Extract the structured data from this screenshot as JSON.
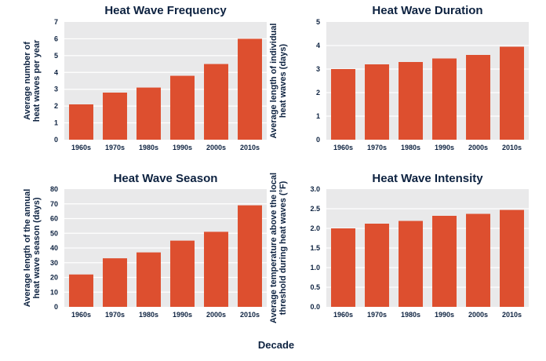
{
  "figure": {
    "shared_xlabel": "Decade"
  },
  "chart_data": [
    {
      "type": "bar",
      "title": "Heat Wave Frequency",
      "ylabel": [
        "Average number of",
        "heat waves per year"
      ],
      "categories": [
        "1960s",
        "1970s",
        "1980s",
        "1990s",
        "2000s",
        "2010s"
      ],
      "values": [
        2.1,
        2.8,
        3.1,
        3.8,
        4.5,
        6.0
      ],
      "ylim": [
        0,
        7
      ],
      "yticks": [
        0,
        1,
        2,
        3,
        4,
        5,
        6,
        7
      ],
      "ytick_labels": [
        "0",
        "1",
        "2",
        "3",
        "4",
        "5",
        "6",
        "7"
      ],
      "color": "#dd4f2f"
    },
    {
      "type": "bar",
      "title": "Heat Wave Duration",
      "ylabel": [
        "Average length of individual",
        "heat waves (days)"
      ],
      "categories": [
        "1960s",
        "1970s",
        "1980s",
        "1990s",
        "2000s",
        "2010s"
      ],
      "values": [
        3.0,
        3.2,
        3.3,
        3.45,
        3.6,
        3.95
      ],
      "ylim": [
        0,
        5
      ],
      "yticks": [
        0,
        1,
        2,
        3,
        4,
        5
      ],
      "ytick_labels": [
        "0",
        "1",
        "2",
        "3",
        "4",
        "5"
      ],
      "color": "#dd4f2f"
    },
    {
      "type": "bar",
      "title": "Heat Wave Season",
      "ylabel": [
        "Average length of the annual",
        "heat wave season (days)"
      ],
      "categories": [
        "1960s",
        "1970s",
        "1980s",
        "1990s",
        "2000s",
        "2010s"
      ],
      "values": [
        22,
        33,
        37,
        45,
        51,
        69
      ],
      "ylim": [
        0,
        80
      ],
      "yticks": [
        0,
        10,
        20,
        30,
        40,
        50,
        60,
        70,
        80
      ],
      "ytick_labels": [
        "0",
        "10",
        "20",
        "30",
        "40",
        "50",
        "60",
        "70",
        "80"
      ],
      "color": "#dd4f2f"
    },
    {
      "type": "bar",
      "title": "Heat Wave Intensity",
      "ylabel": [
        "Average temperature above the local",
        "threshold during heat waves (°F)"
      ],
      "categories": [
        "1960s",
        "1970s",
        "1980s",
        "1990s",
        "2000s",
        "2010s"
      ],
      "values": [
        2.0,
        2.12,
        2.19,
        2.32,
        2.37,
        2.47
      ],
      "ylim": [
        0,
        3
      ],
      "yticks": [
        0,
        0.5,
        1,
        1.5,
        2,
        2.5,
        3
      ],
      "ytick_labels": [
        "0.0",
        "0.5",
        "1.0",
        "1.5",
        "2.0",
        "2.5",
        "3.0"
      ],
      "color": "#dd4f2f"
    }
  ]
}
